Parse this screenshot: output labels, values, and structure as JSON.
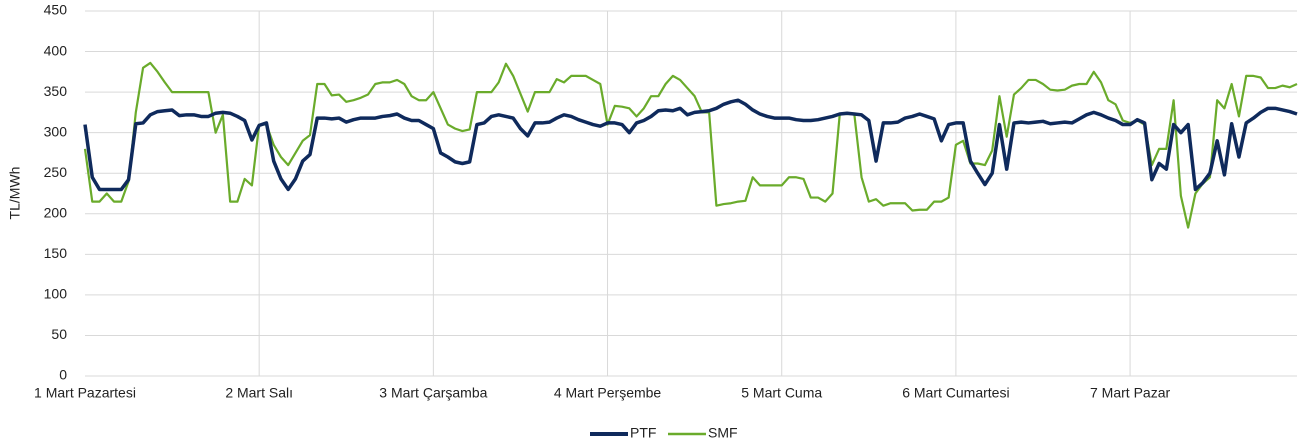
{
  "chart_data": {
    "type": "line",
    "y_label": "TL/MWh",
    "categories": [
      "1 Mart Pazartesi",
      null,
      null,
      null,
      null,
      null,
      null,
      null,
      null,
      null,
      null,
      null,
      null,
      null,
      null,
      null,
      null,
      null,
      null,
      null,
      null,
      null,
      null,
      null,
      "2 Mart Salı",
      null,
      null,
      null,
      null,
      null,
      null,
      null,
      null,
      null,
      null,
      null,
      null,
      null,
      null,
      null,
      null,
      null,
      null,
      null,
      null,
      null,
      null,
      null,
      "3 Mart Çarşamba",
      null,
      null,
      null,
      null,
      null,
      null,
      null,
      null,
      null,
      null,
      null,
      null,
      null,
      null,
      null,
      null,
      null,
      null,
      null,
      null,
      null,
      null,
      null,
      "4 Mart Perşembe",
      null,
      null,
      null,
      null,
      null,
      null,
      null,
      null,
      null,
      null,
      null,
      null,
      null,
      null,
      null,
      null,
      null,
      null,
      null,
      null,
      null,
      null,
      null,
      "5 Mart Cuma",
      null,
      null,
      null,
      null,
      null,
      null,
      null,
      null,
      null,
      null,
      null,
      null,
      null,
      null,
      null,
      null,
      null,
      null,
      null,
      null,
      null,
      null,
      null,
      "6 Mart Cumartesi",
      null,
      null,
      null,
      null,
      null,
      null,
      null,
      null,
      null,
      null,
      null,
      null,
      null,
      null,
      null,
      null,
      null,
      null,
      null,
      null,
      null,
      null,
      null,
      "7 Mart Pazar",
      null,
      null,
      null,
      null,
      null,
      null,
      null,
      null,
      null,
      null,
      null,
      null,
      null,
      null,
      null,
      null,
      null,
      null,
      null,
      null,
      null,
      null,
      null
    ],
    "series": [
      {
        "name": "PTF",
        "color": "#0f2a5c",
        "values": [
          310,
          245,
          230,
          230,
          230,
          230,
          242,
          311,
          312,
          322,
          326,
          327,
          328,
          321,
          322,
          322,
          320,
          320,
          324,
          325,
          324,
          320,
          315,
          291,
          309,
          312,
          265,
          243,
          230,
          243,
          265,
          273,
          318,
          318,
          317,
          318,
          313,
          316,
          318,
          318,
          318,
          320,
          321,
          323,
          318,
          315,
          315,
          310,
          305,
          275,
          270,
          264,
          262,
          264,
          310,
          312,
          320,
          322,
          320,
          318,
          305,
          296,
          312,
          312,
          313,
          318,
          322,
          320,
          316,
          313,
          310,
          308,
          312,
          312,
          310,
          300,
          312,
          315,
          320,
          327,
          328,
          327,
          330,
          322,
          325,
          326,
          327,
          330,
          335,
          338,
          340,
          335,
          328,
          323,
          320,
          318,
          318,
          318,
          316,
          315,
          315,
          316,
          318,
          320,
          323,
          324,
          323,
          322,
          315,
          265,
          312,
          312,
          313,
          318,
          320,
          323,
          320,
          317,
          290,
          310,
          312,
          312,
          265,
          250,
          236,
          250,
          310,
          255,
          312,
          313,
          312,
          313,
          314,
          311,
          312,
          313,
          312,
          317,
          322,
          325,
          322,
          318,
          315,
          310,
          310,
          316,
          312,
          242,
          262,
          255,
          310,
          300,
          310,
          230,
          238,
          250,
          290,
          248,
          311,
          270,
          312,
          318,
          325,
          330,
          330,
          328,
          326,
          323
        ]
      },
      {
        "name": "SMF",
        "color": "#6aab2b",
        "values": [
          280,
          215,
          215,
          225,
          215,
          215,
          240,
          325,
          380,
          386,
          375,
          362,
          350,
          350,
          350,
          350,
          350,
          350,
          300,
          322,
          215,
          215,
          243,
          235,
          310,
          310,
          285,
          270,
          260,
          275,
          290,
          297,
          360,
          360,
          346,
          347,
          338,
          340,
          343,
          347,
          360,
          362,
          362,
          365,
          360,
          345,
          340,
          340,
          350,
          330,
          310,
          305,
          302,
          304,
          350,
          350,
          350,
          362,
          385,
          370,
          348,
          326,
          350,
          350,
          350,
          366,
          362,
          370,
          370,
          370,
          365,
          360,
          310,
          333,
          332,
          330,
          320,
          330,
          345,
          345,
          360,
          370,
          365,
          355,
          345,
          325,
          325,
          210,
          212,
          213,
          215,
          216,
          245,
          235,
          235,
          235,
          235,
          245,
          245,
          243,
          220,
          220,
          215,
          225,
          323,
          323,
          323,
          245,
          215,
          218,
          210,
          213,
          213,
          213,
          204,
          205,
          205,
          215,
          215,
          220,
          285,
          290,
          262,
          262,
          260,
          278,
          345,
          295,
          347,
          355,
          365,
          365,
          360,
          353,
          352,
          353,
          358,
          360,
          360,
          375,
          362,
          340,
          335,
          315,
          312,
          315,
          310,
          260,
          280,
          280,
          340,
          222,
          183,
          225,
          237,
          245,
          340,
          330,
          360,
          320,
          370,
          370,
          368,
          355,
          355,
          358,
          356,
          360
        ]
      }
    ],
    "ylim": [
      0,
      450
    ],
    "yticks": [
      0,
      50,
      100,
      150,
      200,
      250,
      300,
      350,
      400,
      450
    ],
    "grid": true,
    "legend": "bottom"
  }
}
